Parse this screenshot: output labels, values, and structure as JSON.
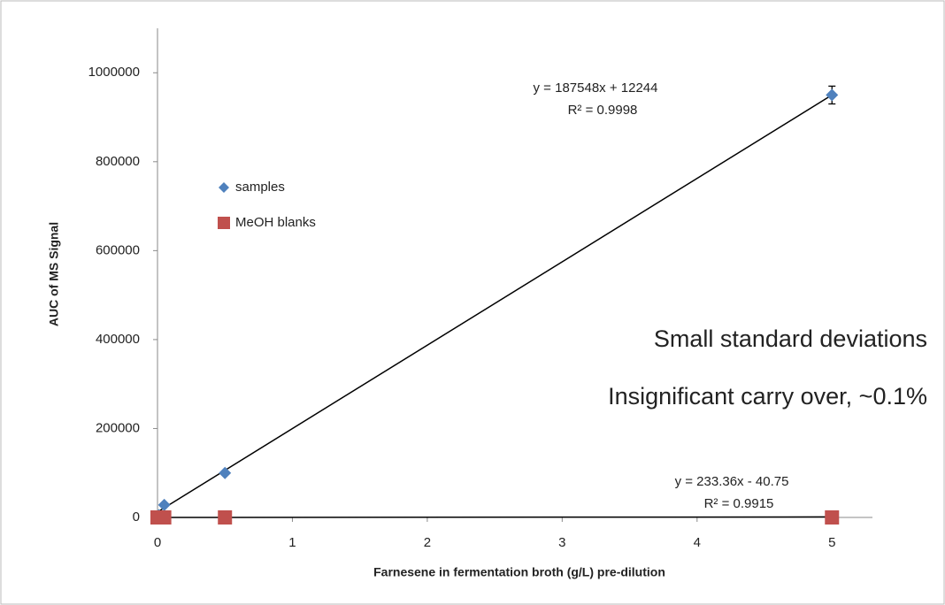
{
  "chart_data": {
    "type": "scatter",
    "xlabel": "Farnesene in fermentation broth (g/L) pre-dilution",
    "ylabel": "AUC of MS Signal",
    "xlim": [
      0,
      5.3
    ],
    "ylim": [
      0,
      1100000
    ],
    "xticks": [
      0,
      1,
      2,
      3,
      4,
      5
    ],
    "yticks": [
      0,
      200000,
      400000,
      600000,
      800000,
      1000000
    ],
    "legend": "upper left",
    "series": [
      {
        "name": "samples",
        "color": "#4f81bd",
        "marker": "diamond",
        "x": [
          0.01,
          0.05,
          0.5,
          5
        ],
        "values": [
          5000,
          28000,
          100000,
          950000
        ],
        "errors": [
          null,
          null,
          null,
          20000
        ],
        "trendline": {
          "slope": 187548,
          "intercept": 12244,
          "equation": "y = 187548x + 12244",
          "r_squared": "R² = 0.9998"
        }
      },
      {
        "name": "MeOH blanks",
        "color": "#c0504d",
        "marker": "square",
        "x": [
          0,
          0.05,
          0.5,
          5
        ],
        "values": [
          0,
          0,
          0,
          0
        ],
        "trendline": {
          "slope": 233.36,
          "intercept": -40.75,
          "equation": "y = 233.36x - 40.75",
          "r_squared": "R² = 0.9915"
        }
      }
    ],
    "annotations": [
      "Small standard deviations",
      "Insignificant carry over, ~0.1%"
    ]
  }
}
